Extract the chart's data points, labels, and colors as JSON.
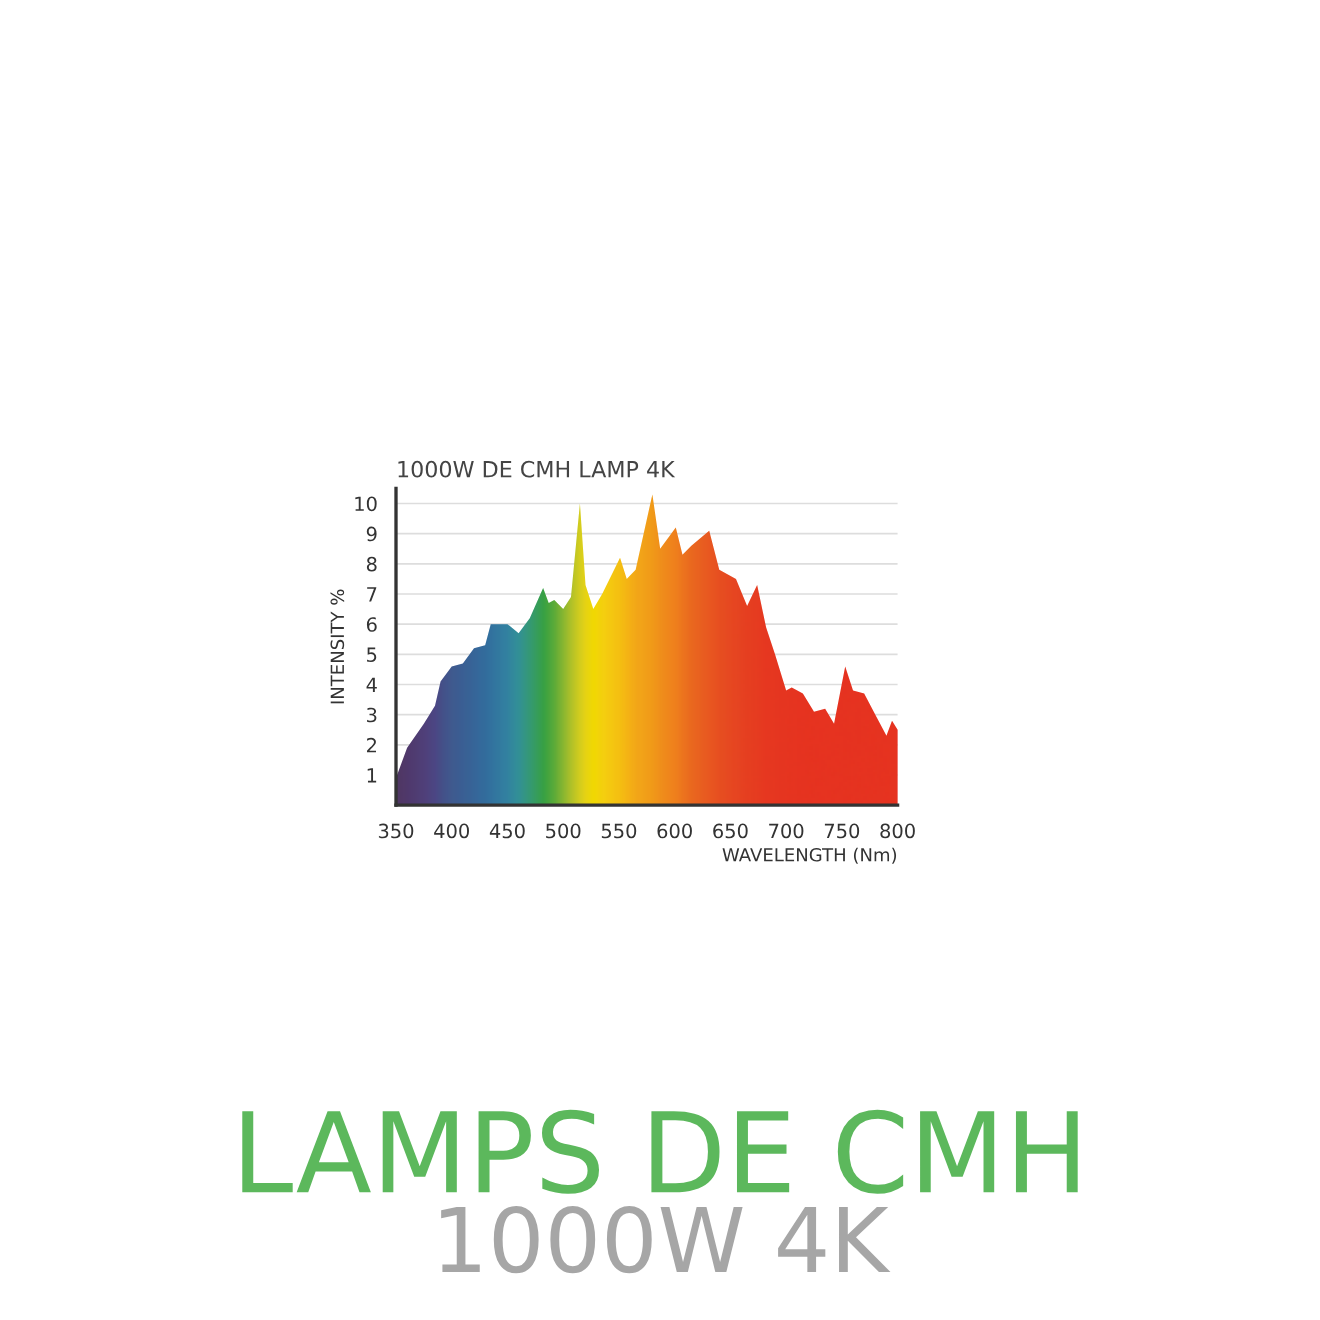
{
  "chart_data": {
    "type": "area",
    "title": "1000W DE CMH LAMP 4K",
    "xlabel": "WAVELENGTH (Nm)",
    "ylabel": "INTENSITY %",
    "annotations": [
      "LAMPS DE CMH",
      "1000W 4K"
    ],
    "x": [
      350,
      360,
      375,
      385,
      390,
      400,
      410,
      420,
      430,
      435,
      450,
      460,
      470,
      482,
      487,
      492,
      500,
      507,
      515,
      520,
      527,
      535,
      551,
      557,
      565,
      580,
      587,
      601,
      607,
      615,
      631,
      640,
      655,
      665,
      674,
      682,
      690,
      700,
      705,
      715,
      725,
      735,
      743,
      753,
      760,
      770,
      780,
      790,
      795,
      800
    ],
    "series": [
      {
        "values": [
          0.9,
          1.9,
          2.7,
          3.3,
          4.1,
          4.6,
          4.7,
          5.2,
          5.3,
          6.0,
          6.0,
          5.7,
          6.2,
          7.2,
          6.7,
          6.8,
          6.5,
          6.9,
          10.0,
          7.3,
          6.5,
          7.0,
          8.2,
          7.5,
          7.8,
          10.3,
          8.5,
          9.2,
          8.3,
          8.6,
          9.1,
          7.8,
          7.5,
          6.6,
          7.3,
          5.9,
          5.0,
          3.8,
          3.9,
          3.7,
          3.1,
          3.2,
          2.7,
          4.6,
          3.8,
          3.7,
          3.0,
          2.3,
          2.8,
          2.5
        ],
        "colors": [
          "#3b2a6e",
          "#3b2c78",
          "#3a3488",
          "#363c94",
          "#2f4598",
          "#2852a0",
          "#2258a6",
          "#1e5fab",
          "#1a67b0",
          "#196db2",
          "#1880b4",
          "#1a90a8",
          "#1c9a80",
          "#1fa24a",
          "#32a843",
          "#4aae3e",
          "#7dbb35",
          "#a9c72c",
          "#d2d51f",
          "#e6dc14",
          "#f2e200",
          "#f5d80e",
          "#f6c412",
          "#f6b815",
          "#f4aa18",
          "#f29a1a",
          "#f18e1c",
          "#ef7c1e",
          "#ed701f",
          "#ea6220",
          "#e84f22",
          "#e64523",
          "#e53a23",
          "#e53323",
          "#e52f22",
          "#e52b22",
          "#e52922",
          "#e52721",
          "#e52721",
          "#e52521",
          "#e52521",
          "#e52521",
          "#e52521",
          "#e52521",
          "#e52521",
          "#e52521",
          "#e52521",
          "#e52521",
          "#e52521",
          "#e52521"
        ]
      }
    ],
    "xlim": [
      350,
      800
    ],
    "ylim": [
      0,
      10.5
    ],
    "xticks": [
      350,
      400,
      450,
      500,
      550,
      600,
      650,
      700,
      750,
      800
    ],
    "yticks": [
      1,
      2,
      3,
      4,
      5,
      6,
      7,
      8,
      9,
      10
    ],
    "grid": "y"
  }
}
